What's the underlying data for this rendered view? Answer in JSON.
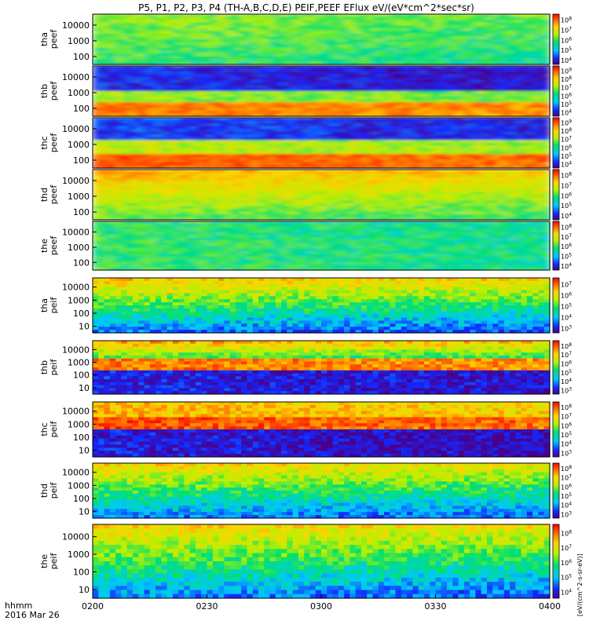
{
  "chart_data": {
    "type": "heatmap",
    "title": "P5, P1, P2, P3, P4 (TH-A,B,C,D,E) PEIF,PEEF EFlux eV/(eV*cm^2*sec*sr)",
    "xlabel_top": "hhmm",
    "xlabel_bottom": "2016 Mar 26",
    "x_ticks": [
      "0200",
      "0230",
      "0300",
      "0330",
      "0400"
    ],
    "colorbar_label": "[eV/(cm^2-s-sr-eV)]",
    "panels": [
      {
        "label_line1": "tha",
        "label_line2": "peef",
        "y_ticks": [
          "10000",
          "1000",
          "100"
        ],
        "cb_ticks": [
          "10^8",
          "10^7",
          "10^6",
          "10^5",
          "10^4"
        ]
      },
      {
        "label_line1": "thb",
        "label_line2": "peef",
        "y_ticks": [
          "10000",
          "1000",
          "100"
        ],
        "cb_ticks": [
          "10^9",
          "10^8",
          "10^7",
          "10^6",
          "10^5",
          "10^4"
        ]
      },
      {
        "label_line1": "thc",
        "label_line2": "peef",
        "y_ticks": [
          "10000",
          "1000",
          "100"
        ],
        "cb_ticks": [
          "10^9",
          "10^8",
          "10^7",
          "10^6",
          "10^5",
          "10^4"
        ]
      },
      {
        "label_line1": "thd",
        "label_line2": "peef",
        "y_ticks": [
          "10000",
          "1000",
          "100"
        ],
        "cb_ticks": [
          "10^8",
          "10^7",
          "10^6",
          "10^5",
          "10^4"
        ]
      },
      {
        "label_line1": "the",
        "label_line2": "peef",
        "y_ticks": [
          "10000",
          "1000",
          "100"
        ],
        "cb_ticks": [
          "10^8",
          "10^7",
          "10^6",
          "10^5",
          "10^4"
        ]
      },
      {
        "label_line1": "tha",
        "label_line2": "peif",
        "y_ticks": [
          "10000",
          "1000",
          "100",
          "10"
        ],
        "cb_ticks": [
          "10^7",
          "10^6",
          "10^5",
          "10^4",
          "10^3"
        ]
      },
      {
        "label_line1": "thb",
        "label_line2": "peif",
        "y_ticks": [
          "10000",
          "1000",
          "100",
          "10"
        ],
        "cb_ticks": [
          "10^8",
          "10^7",
          "10^6",
          "10^5",
          "10^4",
          "10^3"
        ]
      },
      {
        "label_line1": "thc",
        "label_line2": "peif",
        "y_ticks": [
          "10000",
          "1000",
          "100",
          "10"
        ],
        "cb_ticks": [
          "10^8",
          "10^7",
          "10^6",
          "10^5",
          "10^4",
          "10^3"
        ]
      },
      {
        "label_line1": "thd",
        "label_line2": "peif",
        "y_ticks": [
          "10000",
          "1000",
          "100",
          "10"
        ],
        "cb_ticks": [
          "10^8",
          "10^7",
          "10^6",
          "10^5",
          "10^4",
          "10^3"
        ]
      },
      {
        "label_line1": "the",
        "label_line2": "peif",
        "y_ticks": [
          "10000",
          "1000",
          "100",
          "10"
        ],
        "cb_ticks": [
          "10^8",
          "10^7",
          "10^6",
          "10^5",
          "10^4"
        ]
      }
    ]
  }
}
